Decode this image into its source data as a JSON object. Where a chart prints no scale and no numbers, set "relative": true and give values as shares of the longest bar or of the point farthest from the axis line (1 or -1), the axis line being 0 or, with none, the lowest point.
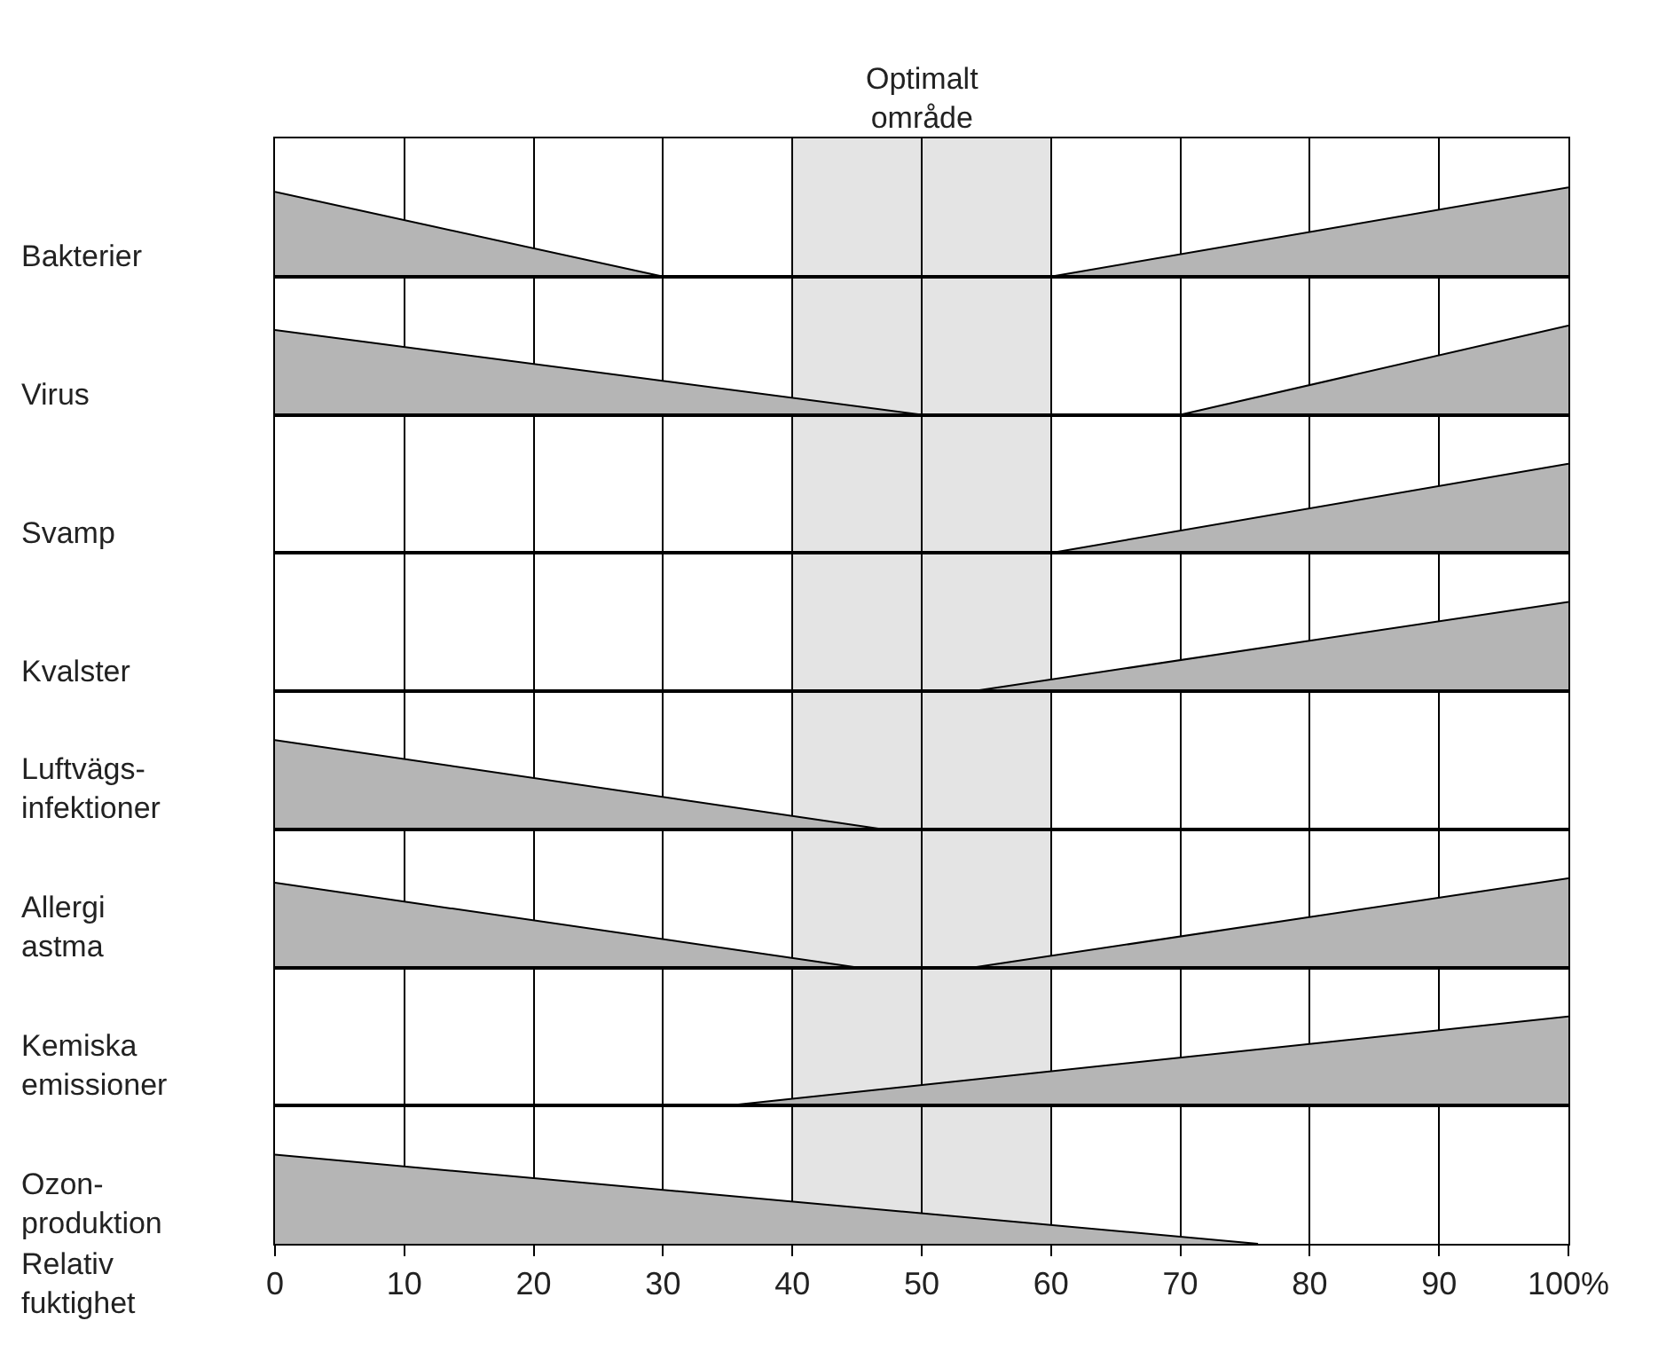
{
  "chart_data": [
    {
      "type": "area",
      "ylabel": "Bakterier",
      "relative": true,
      "xlim": [
        0,
        100
      ],
      "xticks": [
        0,
        10,
        20,
        30,
        40,
        50,
        60,
        70,
        80,
        90,
        100
      ],
      "grid": "x",
      "tick_labels": false,
      "bands": [
        {
          "axis": "x",
          "from": 40,
          "to": 60,
          "label": "Optimalt\nområde",
          "color": "#e4e4e4"
        }
      ],
      "series": [
        {
          "color": "#b5b5b5",
          "x": [
            0,
            30
          ],
          "values": [
            0.95,
            0
          ]
        },
        {
          "color": "#b5b5b5",
          "x": [
            60,
            100
          ],
          "values": [
            0,
            1
          ]
        }
      ]
    },
    {
      "type": "area",
      "ylabel": "Virus",
      "relative": true,
      "xlim": [
        0,
        100
      ],
      "xticks": [
        0,
        10,
        20,
        30,
        40,
        50,
        60,
        70,
        80,
        90,
        100
      ],
      "grid": "x",
      "tick_labels": false,
      "bands": [
        {
          "axis": "x",
          "from": 40,
          "to": 60,
          "color": "#e4e4e4"
        }
      ],
      "series": [
        {
          "color": "#b5b5b5",
          "x": [
            0,
            50
          ],
          "values": [
            0.95,
            0
          ]
        },
        {
          "color": "#b5b5b5",
          "x": [
            70,
            100
          ],
          "values": [
            0,
            1
          ]
        }
      ]
    },
    {
      "type": "area",
      "ylabel": "Svamp",
      "relative": true,
      "xlim": [
        0,
        100
      ],
      "xticks": [
        0,
        10,
        20,
        30,
        40,
        50,
        60,
        70,
        80,
        90,
        100
      ],
      "grid": "x",
      "tick_labels": false,
      "bands": [
        {
          "axis": "x",
          "from": 40,
          "to": 60,
          "color": "#e4e4e4"
        }
      ],
      "series": [
        {
          "color": "#b5b5b5",
          "x": [
            60,
            100
          ],
          "values": [
            0,
            1
          ]
        }
      ]
    },
    {
      "type": "area",
      "ylabel": "Kvalster",
      "relative": true,
      "xlim": [
        0,
        100
      ],
      "xticks": [
        0,
        10,
        20,
        30,
        40,
        50,
        60,
        70,
        80,
        90,
        100
      ],
      "grid": "x",
      "tick_labels": false,
      "bands": [
        {
          "axis": "x",
          "from": 40,
          "to": 60,
          "color": "#e4e4e4"
        }
      ],
      "series": [
        {
          "color": "#b5b5b5",
          "x": [
            54,
            100
          ],
          "values": [
            0,
            1
          ]
        }
      ]
    },
    {
      "type": "area",
      "ylabel": "Luftvägs-\ninfektioner",
      "relative": true,
      "xlim": [
        0,
        100
      ],
      "xticks": [
        0,
        10,
        20,
        30,
        40,
        50,
        60,
        70,
        80,
        90,
        100
      ],
      "grid": "x",
      "tick_labels": false,
      "bands": [
        {
          "axis": "x",
          "from": 40,
          "to": 60,
          "color": "#e4e4e4"
        }
      ],
      "series": [
        {
          "color": "#b5b5b5",
          "x": [
            0,
            47
          ],
          "values": [
            1,
            0
          ]
        }
      ]
    },
    {
      "type": "area",
      "ylabel": "Allergi\nastma",
      "relative": true,
      "xlim": [
        0,
        100
      ],
      "xticks": [
        0,
        10,
        20,
        30,
        40,
        50,
        60,
        70,
        80,
        90,
        100
      ],
      "grid": "x",
      "tick_labels": false,
      "bands": [
        {
          "axis": "x",
          "from": 40,
          "to": 60,
          "color": "#e4e4e4"
        }
      ],
      "series": [
        {
          "color": "#b5b5b5",
          "x": [
            0,
            45
          ],
          "values": [
            0.95,
            0
          ]
        },
        {
          "color": "#b5b5b5",
          "x": [
            54,
            100
          ],
          "values": [
            0,
            1
          ]
        }
      ]
    },
    {
      "type": "area",
      "ylabel": "Kemiska\nemissioner",
      "relative": true,
      "xlim": [
        0,
        100
      ],
      "xticks": [
        0,
        10,
        20,
        30,
        40,
        50,
        60,
        70,
        80,
        90,
        100
      ],
      "grid": "x",
      "tick_labels": false,
      "bands": [
        {
          "axis": "x",
          "from": 40,
          "to": 60,
          "color": "#e4e4e4"
        }
      ],
      "series": [
        {
          "color": "#b5b5b5",
          "x": [
            35,
            100
          ],
          "values": [
            0,
            1
          ]
        }
      ]
    },
    {
      "type": "area",
      "ylabel": "Ozon-\nproduktion",
      "xlabel": "Relativ\nfuktighet",
      "relative": true,
      "xlim": [
        0,
        100
      ],
      "xticks": [
        0,
        10,
        20,
        30,
        40,
        50,
        60,
        70,
        80,
        90,
        {
          "value": 100,
          "label": "100%"
        }
      ],
      "grid": "x",
      "tick_labels": "x",
      "bands": [
        {
          "axis": "x",
          "from": 40,
          "to": 60,
          "color": "#e4e4e4"
        }
      ],
      "series": [
        {
          "color": "#b5b5b5",
          "x": [
            0,
            76
          ],
          "values": [
            1,
            0
          ]
        }
      ]
    }
  ]
}
